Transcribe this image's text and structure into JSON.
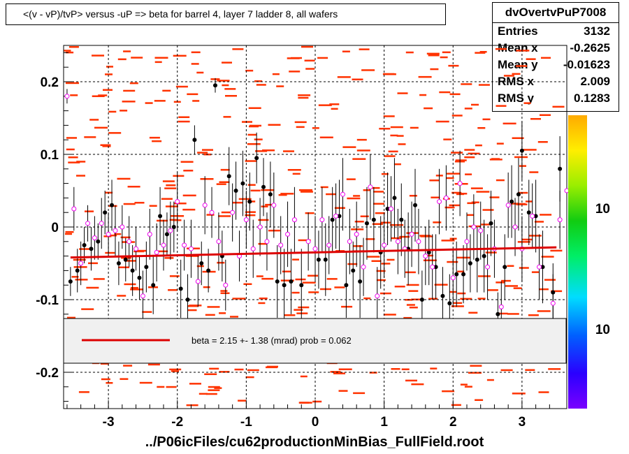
{
  "title": "<(v - vP)/tvP> versus  -uP => beta for barrel 4, layer 7 ladder 8, all wafers",
  "stats": {
    "name": "dvOvertvPuP7008",
    "rows": [
      {
        "label": "Entries",
        "value": "3132"
      },
      {
        "label": "Mean x",
        "value": "-0.2625"
      },
      {
        "label": "Mean y",
        "value": "-0.01623"
      },
      {
        "label": "RMS x",
        "value": "2.009"
      },
      {
        "label": "RMS y",
        "value": "0.1283"
      }
    ]
  },
  "xaxis_title": "../P06icFiles/cu62productionMinBias_FullField.root",
  "legend": {
    "fit_text": "beta =    2.15 +-  1.38 (mrad) prob = 0.062",
    "line_color": "#dd0000"
  },
  "colors": {
    "fit": "#dd0000",
    "cells": "#ff3300",
    "black_points": "#000000",
    "magenta_points": "#ee00ee"
  },
  "palette_labels": [
    "10",
    "10"
  ],
  "chart_data": {
    "type": "scatter",
    "xlim": [
      -3.65,
      3.65
    ],
    "ylim": [
      -0.25,
      0.25
    ],
    "x_ticks": [
      -3,
      -2,
      -1,
      0,
      1,
      2,
      3
    ],
    "y_ticks": [
      -0.2,
      -0.1,
      0,
      0.1,
      0.2
    ],
    "x_tick_labels": [
      "-3",
      "-2",
      "-1",
      "0",
      "1",
      "2",
      "3"
    ],
    "y_tick_labels": [
      "-0.2",
      "-0.1",
      "0",
      "0.1",
      "0.2"
    ],
    "grid": true,
    "fit_line": {
      "x": [
        -3.55,
        3.5
      ],
      "y": [
        -0.042,
        -0.028
      ]
    },
    "black_profile": [
      [
        -3.55,
        -0.075,
        0.02
      ],
      [
        -3.45,
        -0.06,
        0.03
      ],
      [
        -3.35,
        -0.025,
        0.025
      ],
      [
        -3.25,
        -0.03,
        0.03
      ],
      [
        -3.15,
        -0.02,
        0.025
      ],
      [
        -3.05,
        0.02,
        0.03
      ],
      [
        -2.95,
        0.03,
        0.035
      ],
      [
        -2.85,
        -0.05,
        0.03
      ],
      [
        -2.75,
        -0.045,
        0.03
      ],
      [
        -2.65,
        -0.06,
        0.035
      ],
      [
        -2.55,
        -0.07,
        0.03
      ],
      [
        -2.45,
        -0.055,
        0.035
      ],
      [
        -2.35,
        -0.08,
        0.04
      ],
      [
        -2.25,
        0.015,
        0.04
      ],
      [
        -2.15,
        -0.01,
        0.03
      ],
      [
        -2.05,
        0.0,
        0.035
      ],
      [
        -1.95,
        -0.085,
        0.04
      ],
      [
        -1.85,
        -0.1,
        0.035
      ],
      [
        -1.75,
        0.12,
        0.02
      ],
      [
        -1.65,
        -0.05,
        0.03
      ],
      [
        -1.55,
        -0.06,
        0.03
      ],
      [
        -1.45,
        0.195,
        0.01
      ],
      [
        -1.35,
        -0.04,
        0.035
      ],
      [
        -1.25,
        0.07,
        0.04
      ],
      [
        -1.15,
        0.05,
        0.04
      ],
      [
        -1.05,
        0.06,
        0.045
      ],
      [
        -0.95,
        0.035,
        0.04
      ],
      [
        -0.85,
        0.095,
        0.035
      ],
      [
        -0.75,
        0.055,
        0.04
      ],
      [
        -0.65,
        0.045,
        0.045
      ],
      [
        -0.55,
        -0.075,
        0.05
      ],
      [
        -0.45,
        -0.08,
        0.05
      ],
      [
        -0.35,
        -0.075,
        0.045
      ],
      [
        -0.2,
        -0.08,
        0.05
      ],
      [
        0.05,
        -0.045,
        0.04
      ],
      [
        0.15,
        -0.045,
        0.05
      ],
      [
        0.25,
        0.01,
        0.045
      ],
      [
        0.35,
        0.015,
        0.05
      ],
      [
        0.45,
        -0.08,
        0.045
      ],
      [
        0.55,
        -0.06,
        0.04
      ],
      [
        0.65,
        -0.075,
        0.05
      ],
      [
        0.75,
        0.005,
        0.05
      ],
      [
        0.85,
        0.01,
        0.045
      ],
      [
        0.95,
        -0.035,
        0.05
      ],
      [
        1.05,
        0.025,
        0.05
      ],
      [
        1.15,
        0.04,
        0.055
      ],
      [
        1.25,
        0.01,
        0.05
      ],
      [
        1.35,
        -0.03,
        0.05
      ],
      [
        1.45,
        0.03,
        0.05
      ],
      [
        1.55,
        -0.1,
        0.04
      ],
      [
        1.65,
        -0.035,
        0.045
      ],
      [
        1.75,
        -0.055,
        0.045
      ],
      [
        1.85,
        -0.095,
        0.04
      ],
      [
        1.95,
        -0.105,
        0.04
      ],
      [
        2.05,
        -0.065,
        0.045
      ],
      [
        2.15,
        -0.065,
        0.04
      ],
      [
        2.25,
        -0.05,
        0.04
      ],
      [
        2.35,
        -0.045,
        0.045
      ],
      [
        2.45,
        -0.04,
        0.05
      ],
      [
        2.55,
        0.005,
        0.045
      ],
      [
        2.65,
        -0.12,
        0.03
      ],
      [
        2.75,
        -0.055,
        0.045
      ],
      [
        2.85,
        0.035,
        0.05
      ],
      [
        2.95,
        0.045,
        0.05
      ],
      [
        3.0,
        0.105,
        0.04
      ],
      [
        3.1,
        0.02,
        0.045
      ],
      [
        3.2,
        0.015,
        0.05
      ],
      [
        3.3,
        -0.055,
        0.05
      ],
      [
        3.45,
        -0.09,
        0.04
      ],
      [
        3.55,
        0.08,
        0.045
      ]
    ],
    "magenta_profile": [
      [
        -3.6,
        0.18,
        0.01
      ],
      [
        -3.5,
        0.025,
        0.03
      ],
      [
        -3.4,
        -0.05,
        0.03
      ],
      [
        -3.3,
        0.005,
        0.025
      ],
      [
        -3.2,
        -0.015,
        0.03
      ],
      [
        -3.1,
        0.005,
        0.035
      ],
      [
        -3.0,
        -0.01,
        0.03
      ],
      [
        -2.9,
        -0.005,
        0.035
      ],
      [
        -2.8,
        0.0,
        0.03
      ],
      [
        -2.7,
        -0.02,
        0.035
      ],
      [
        -2.6,
        -0.03,
        0.03
      ],
      [
        -2.5,
        -0.095,
        0.035
      ],
      [
        -2.4,
        -0.01,
        0.035
      ],
      [
        -2.3,
        -0.035,
        0.04
      ],
      [
        -2.2,
        -0.025,
        0.035
      ],
      [
        -2.1,
        -0.005,
        0.04
      ],
      [
        -2.0,
        0.035,
        0.04
      ],
      [
        -1.9,
        -0.025,
        0.035
      ],
      [
        -1.8,
        -0.03,
        0.04
      ],
      [
        -1.7,
        -0.075,
        0.035
      ],
      [
        -1.6,
        0.03,
        0.04
      ],
      [
        -1.5,
        0.02,
        0.035
      ],
      [
        -1.4,
        -0.02,
        0.04
      ],
      [
        -1.3,
        -0.08,
        0.035
      ],
      [
        -1.2,
        0.02,
        0.04
      ],
      [
        -1.1,
        -0.04,
        0.035
      ],
      [
        -1.0,
        0.01,
        0.04
      ],
      [
        -0.9,
        -0.03,
        0.04
      ],
      [
        -0.8,
        0.0,
        0.04
      ],
      [
        -0.7,
        -0.02,
        0.04
      ],
      [
        -0.6,
        0.03,
        0.045
      ],
      [
        -0.5,
        -0.025,
        0.04
      ],
      [
        -0.4,
        -0.01,
        0.045
      ],
      [
        -0.3,
        0.01,
        0.045
      ],
      [
        -0.1,
        -0.02,
        0.04
      ],
      [
        0.0,
        -0.03,
        0.045
      ],
      [
        0.1,
        0.01,
        0.045
      ],
      [
        0.2,
        -0.025,
        0.04
      ],
      [
        0.3,
        0.015,
        0.045
      ],
      [
        0.4,
        0.045,
        0.05
      ],
      [
        0.5,
        -0.02,
        0.045
      ],
      [
        0.6,
        -0.01,
        0.045
      ],
      [
        0.7,
        -0.055,
        0.04
      ],
      [
        0.8,
        0.055,
        0.045
      ],
      [
        0.9,
        -0.095,
        0.04
      ],
      [
        1.0,
        -0.025,
        0.045
      ],
      [
        1.1,
        0.025,
        0.045
      ],
      [
        1.2,
        -0.02,
        0.045
      ],
      [
        1.3,
        -0.03,
        0.04
      ],
      [
        1.4,
        -0.01,
        0.045
      ],
      [
        1.5,
        -0.02,
        0.045
      ],
      [
        1.6,
        -0.04,
        0.04
      ],
      [
        1.7,
        -0.055,
        0.045
      ],
      [
        1.8,
        0.035,
        0.045
      ],
      [
        1.9,
        0.04,
        0.045
      ],
      [
        2.0,
        -0.07,
        0.04
      ],
      [
        2.1,
        0.06,
        0.045
      ],
      [
        2.2,
        -0.02,
        0.04
      ],
      [
        2.3,
        0.0,
        0.045
      ],
      [
        2.4,
        -0.005,
        0.04
      ],
      [
        2.5,
        -0.055,
        0.045
      ],
      [
        2.6,
        -0.03,
        0.04
      ],
      [
        2.7,
        -0.11,
        0.035
      ],
      [
        2.8,
        0.03,
        0.045
      ],
      [
        2.9,
        0.0,
        0.04
      ],
      [
        3.0,
        -0.03,
        0.045
      ],
      [
        3.15,
        0.015,
        0.045
      ],
      [
        3.25,
        -0.055,
        0.045
      ],
      [
        3.45,
        -0.105,
        0.04
      ],
      [
        3.55,
        0.01,
        0.04
      ],
      [
        3.65,
        0.05,
        0.045
      ]
    ]
  }
}
